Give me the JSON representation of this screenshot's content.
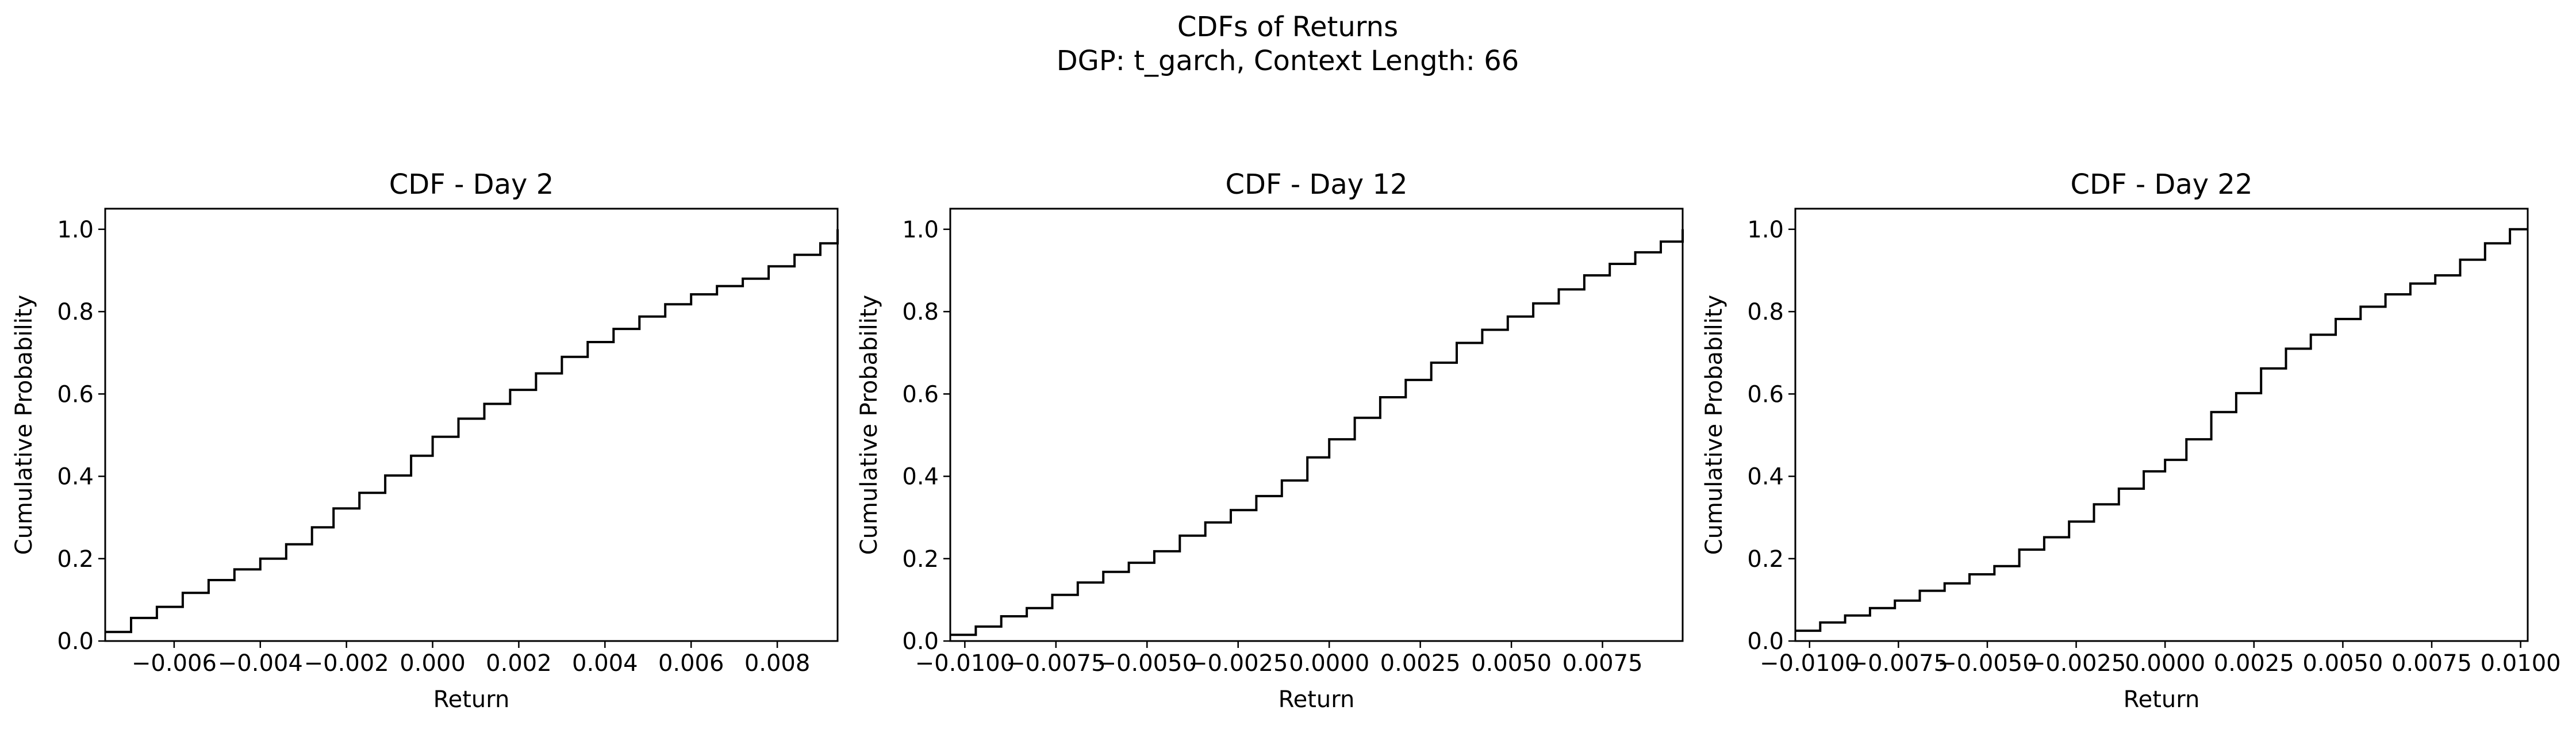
{
  "figure": {
    "title_line1": "CDFs of Returns",
    "title_line2": "DGP: t_garch, Context Length: 66"
  },
  "chart_data": [
    {
      "type": "line",
      "drawstyle": "steps-post",
      "title": "CDF - Day 2",
      "xlabel": "Return",
      "ylabel": "Cumulative Probability",
      "xlim": [
        -0.0076,
        0.0094
      ],
      "ylim": [
        0.0,
        1.05
      ],
      "xticks": [
        -0.006,
        -0.004,
        -0.002,
        0.0,
        0.002,
        0.004,
        0.006,
        0.008
      ],
      "xtick_labels": [
        "−0.006",
        "−0.004",
        "−0.002",
        "0.000",
        "0.002",
        "0.004",
        "0.006",
        "0.008"
      ],
      "yticks": [
        0.0,
        0.2,
        0.4,
        0.6,
        0.8,
        1.0
      ],
      "ytick_labels": [
        "0.0",
        "0.2",
        "0.4",
        "0.6",
        "0.8",
        "1.0"
      ],
      "grid": false,
      "color": "#000000",
      "series": [
        {
          "x": [
            -0.0076,
            -0.007,
            -0.0064,
            -0.0058,
            -0.0052,
            -0.0046,
            -0.004,
            -0.0034,
            -0.0028,
            -0.0023,
            -0.0017,
            -0.0011,
            -0.0005,
            0.0,
            0.0006,
            0.0012,
            0.0018,
            0.0024,
            0.003,
            0.0036,
            0.0042,
            0.0048,
            0.0054,
            0.006,
            0.0066,
            0.0072,
            0.0078,
            0.0084,
            0.009,
            0.0094
          ],
          "y": [
            0.022,
            0.056,
            0.083,
            0.117,
            0.148,
            0.174,
            0.2,
            0.235,
            0.276,
            0.322,
            0.36,
            0.402,
            0.45,
            0.496,
            0.54,
            0.576,
            0.61,
            0.65,
            0.69,
            0.726,
            0.758,
            0.788,
            0.818,
            0.842,
            0.862,
            0.88,
            0.91,
            0.938,
            0.966,
            1.0
          ]
        }
      ]
    },
    {
      "type": "line",
      "drawstyle": "steps-post",
      "title": "CDF - Day 12",
      "xlabel": "Return",
      "ylabel": "Cumulative Probability",
      "xlim": [
        -0.0104,
        0.0097
      ],
      "ylim": [
        0.0,
        1.05
      ],
      "xticks": [
        -0.01,
        -0.0075,
        -0.005,
        -0.0025,
        0.0,
        0.0025,
        0.005,
        0.0075
      ],
      "xtick_labels": [
        "−0.0100",
        "−0.0075",
        "−0.0050",
        "−0.0025",
        "0.0000",
        "0.0025",
        "0.0050",
        "0.0075"
      ],
      "yticks": [
        0.0,
        0.2,
        0.4,
        0.6,
        0.8,
        1.0
      ],
      "ytick_labels": [
        "0.0",
        "0.2",
        "0.4",
        "0.6",
        "0.8",
        "1.0"
      ],
      "grid": false,
      "color": "#000000",
      "series": [
        {
          "x": [
            -0.0104,
            -0.0097,
            -0.009,
            -0.0083,
            -0.0076,
            -0.0069,
            -0.0062,
            -0.0055,
            -0.0048,
            -0.0041,
            -0.0034,
            -0.0027,
            -0.002,
            -0.0013,
            -0.0006,
            0.0,
            0.0007,
            0.0014,
            0.0021,
            0.0028,
            0.0035,
            0.0042,
            0.0049,
            0.0056,
            0.0063,
            0.007,
            0.0077,
            0.0084,
            0.0091,
            0.0097
          ],
          "y": [
            0.015,
            0.035,
            0.06,
            0.08,
            0.112,
            0.142,
            0.168,
            0.19,
            0.218,
            0.256,
            0.288,
            0.318,
            0.352,
            0.39,
            0.446,
            0.49,
            0.542,
            0.592,
            0.634,
            0.676,
            0.724,
            0.756,
            0.788,
            0.82,
            0.854,
            0.888,
            0.916,
            0.944,
            0.97,
            1.0
          ]
        }
      ]
    },
    {
      "type": "line",
      "drawstyle": "steps-post",
      "title": "CDF - Day 22",
      "xlabel": "Return",
      "ylabel": "Cumulative Probability",
      "xlim": [
        -0.0104,
        0.0102
      ],
      "ylim": [
        0.0,
        1.05
      ],
      "xticks": [
        -0.01,
        -0.0075,
        -0.005,
        -0.0025,
        0.0,
        0.0025,
        0.005,
        0.0075,
        0.01
      ],
      "xtick_labels": [
        "−0.0100",
        "−0.0075",
        "−0.0050",
        "−0.0025",
        "0.0000",
        "0.0025",
        "0.0050",
        "0.0075",
        "0.0100"
      ],
      "yticks": [
        0.0,
        0.2,
        0.4,
        0.6,
        0.8,
        1.0
      ],
      "ytick_labels": [
        "0.0",
        "0.2",
        "0.4",
        "0.6",
        "0.8",
        "1.0"
      ],
      "grid": false,
      "color": "#000000",
      "series": [
        {
          "x": [
            -0.0104,
            -0.0097,
            -0.009,
            -0.0083,
            -0.0076,
            -0.0069,
            -0.0062,
            -0.0055,
            -0.0048,
            -0.0041,
            -0.0034,
            -0.0027,
            -0.002,
            -0.0013,
            -0.0006,
            0.0,
            0.0006,
            0.0013,
            0.002,
            0.0027,
            0.0034,
            0.0041,
            0.0048,
            0.0055,
            0.0062,
            0.0069,
            0.0076,
            0.0083,
            0.009,
            0.0097,
            0.0102
          ],
          "y": [
            0.025,
            0.045,
            0.062,
            0.08,
            0.098,
            0.122,
            0.14,
            0.162,
            0.182,
            0.222,
            0.252,
            0.29,
            0.332,
            0.37,
            0.412,
            0.44,
            0.49,
            0.556,
            0.602,
            0.662,
            0.71,
            0.744,
            0.782,
            0.812,
            0.842,
            0.868,
            0.888,
            0.926,
            0.966,
            1.0,
            1.0
          ]
        }
      ]
    }
  ]
}
